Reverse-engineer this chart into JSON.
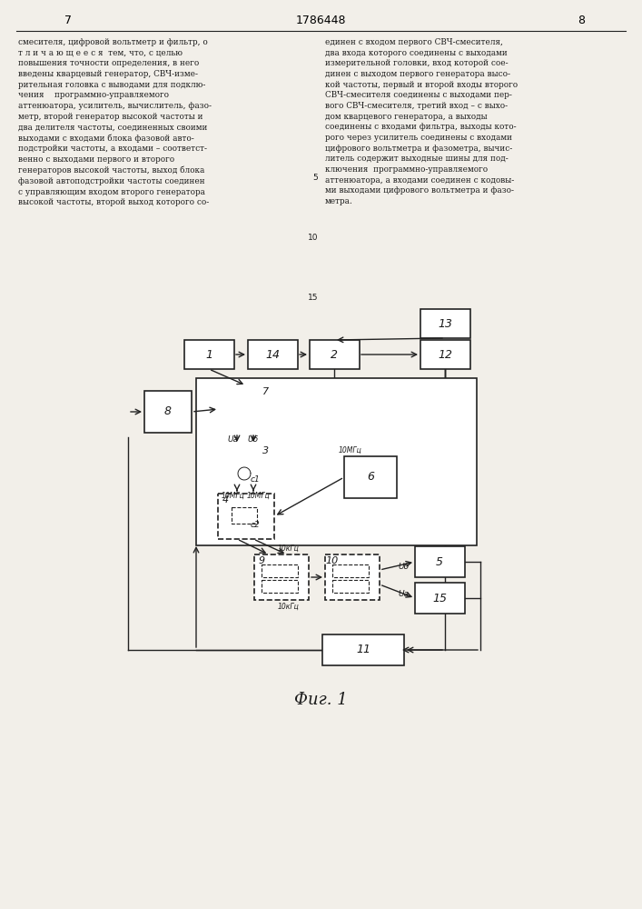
{
  "page_number_left": "7",
  "patent_number": "1786448",
  "page_number_right": "8",
  "figure_caption": "Фиг. 1",
  "bg_color": "#f2efe9",
  "text_color": "#1a1a1a",
  "block_fill": "#ffffff",
  "block_edge": "#222222",
  "line_color": "#222222",
  "text_body_left": "смесителя, цифровой вольтметр и фильтр, о\nт л и ч а ю щ е е с я  тем, что, с целью\nповышения точности определения, в него\nвведены кварцевый генератор, СВЧ-изме-\nрительная головка с выводами для подклю-\nчения    программно-управляемого\nаттенюатора, усилитель, вычислитель, фазо-\nметр, второй генератор высокой частоты и\nдва делителя частоты, соединенных своими\nвыходами с входами блока фазовой авто-\nподстройки частоты, а входами – соответст-\nвенно с выходами первого и второго\nгенераторов высокой частоты, выход блока\nфазовой автоподстройки частоты соединен\nс управляющим входом второго генератора\nвысокой частоты, второй выход которого со-",
  "text_body_right": "единен с входом первого СВЧ-смесителя,\nдва входа которого соединены с выходами\nизмерительной головки, вход которой сое-\nдинен с выходом первого генератора высо-\nкой частоты, первый и второй входы второго\nСВЧ-смесителя соединены с выходами пер-\nвого СВЧ-смесителя, третий вход – с выхо-\nдом кварцевого генератора, а выходы\nсоединены с входами фильтра, выходы кото-\nрого через усилитель соединены с входами\nцифрового вольтметра и фазометра, вычис-\nлитель содержит выходные шины для под-\nключения  программно-управляемого\nаттенюатора, а входами соединен с кодовы-\nми выходами цифрового вольтметра и фазо-\nметра.",
  "line_numbers": [
    "5",
    "10",
    "15"
  ]
}
